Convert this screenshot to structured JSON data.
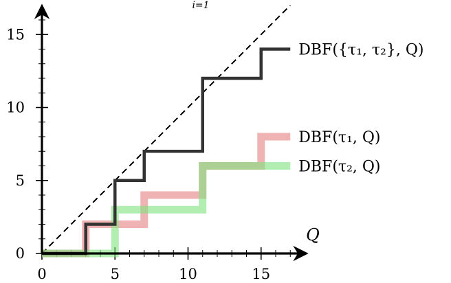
{
  "top_note": "i=1",
  "chart_data": {
    "type": "line",
    "step": true,
    "title": "",
    "xlabel": "Q",
    "ylabel": "",
    "xlim": [
      0,
      17
    ],
    "ylim": [
      0,
      17
    ],
    "x_ticks": [
      0,
      5,
      10,
      15
    ],
    "x_tick_labels": [
      "0",
      "5",
      "10",
      "15"
    ],
    "y_ticks": [
      0,
      5,
      10,
      15
    ],
    "y_tick_labels": [
      "0",
      "5",
      "10",
      "15"
    ],
    "minor_tick_step": 1,
    "grid": false,
    "legend": "inline labels at right end of each series",
    "reference_line": {
      "style": "dashed",
      "color": "#000000",
      "points": [
        [
          0,
          0
        ],
        [
          17,
          17
        ]
      ]
    },
    "series": [
      {
        "name": "DBF(τ1, Q)",
        "label": "DBF(τ₁, Q)",
        "color": "#e88a8a",
        "opacity": 0.65,
        "x": [
          0,
          3,
          7,
          11,
          15,
          17
        ],
        "values": [
          0,
          2,
          4,
          6,
          8,
          8
        ]
      },
      {
        "name": "DBF(τ2, Q)",
        "label": "DBF(τ₂, Q)",
        "color": "#7ee27e",
        "opacity": 0.6,
        "x": [
          0,
          5,
          11,
          17
        ],
        "values": [
          0,
          3,
          6,
          6
        ]
      },
      {
        "name": "DBF({τ1, τ2}, Q)",
        "label": "DBF({τ₁, τ₂}, Q)",
        "color": "#333333",
        "opacity": 1,
        "x": [
          0,
          3,
          5,
          7,
          11,
          15,
          17
        ],
        "values": [
          0,
          2,
          5,
          7,
          12,
          14,
          14
        ]
      }
    ]
  }
}
